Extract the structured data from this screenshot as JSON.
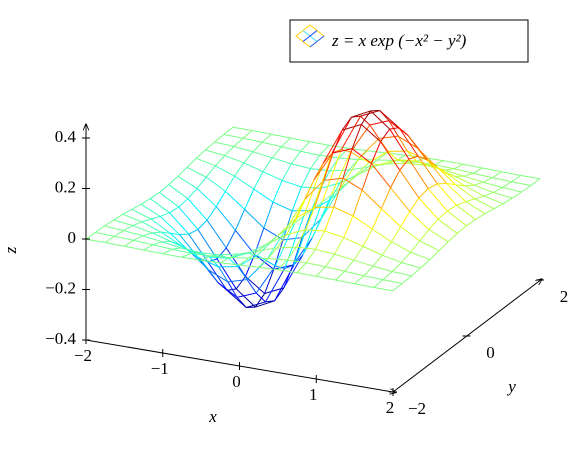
{
  "chart_data": {
    "type": "mesh",
    "legend": "z = x exp (−x² − y²)",
    "xlabel": "x",
    "ylabel": "y",
    "zlabel": "z",
    "x": [
      -2,
      -1.75,
      -1.5,
      -1.25,
      -1,
      -0.75,
      -0.5,
      -0.25,
      0,
      0.25,
      0.5,
      0.75,
      1,
      1.25,
      1.5,
      1.75,
      2
    ],
    "y": [
      -2,
      -1.75,
      -1.5,
      -1.25,
      -1,
      -0.75,
      -0.5,
      -0.25,
      0,
      0.25,
      0.5,
      0.75,
      1,
      1.25,
      1.5,
      1.75,
      2
    ],
    "z": [
      [
        -0.001,
        -0.002,
        -0.004,
        -0.008,
        -0.013,
        -0.021,
        -0.029,
        -0.034,
        -0.037,
        -0.034,
        -0.029,
        -0.021,
        -0.013,
        -0.008,
        -0.004,
        -0.002,
        -0.001
      ],
      [
        -0.001,
        -0.004,
        -0.009,
        -0.017,
        -0.03,
        -0.047,
        -0.064,
        -0.077,
        -0.082,
        -0.077,
        -0.064,
        -0.047,
        -0.03,
        -0.017,
        -0.009,
        -0.004,
        -0.001
      ],
      [
        -0.003,
        -0.007,
        -0.017,
        -0.033,
        -0.058,
        -0.09,
        -0.123,
        -0.149,
        -0.158,
        -0.149,
        -0.123,
        -0.09,
        -0.058,
        -0.033,
        -0.017,
        -0.007,
        -0.003
      ],
      [
        -0.005,
        -0.012,
        -0.028,
        -0.055,
        -0.096,
        -0.149,
        -0.204,
        -0.246,
        -0.262,
        -0.246,
        -0.204,
        -0.149,
        -0.096,
        -0.055,
        -0.028,
        -0.012,
        -0.005
      ],
      [
        -0.007,
        -0.017,
        -0.039,
        -0.077,
        -0.135,
        -0.21,
        -0.287,
        -0.346,
        -0.368,
        -0.346,
        -0.287,
        -0.21,
        -0.135,
        -0.077,
        -0.039,
        -0.017,
        -0.007
      ],
      [
        -0.008,
        -0.02,
        -0.045,
        -0.09,
        -0.157,
        -0.244,
        -0.333,
        -0.401,
        -0.427,
        -0.401,
        -0.333,
        -0.244,
        -0.157,
        -0.09,
        -0.045,
        -0.02,
        -0.008
      ],
      [
        -0.007,
        -0.018,
        -0.041,
        -0.082,
        -0.143,
        -0.222,
        -0.303,
        -0.366,
        -0.389,
        -0.366,
        -0.303,
        -0.222,
        -0.143,
        -0.082,
        -0.041,
        -0.018,
        -0.007
      ],
      [
        -0.004,
        -0.011,
        -0.025,
        -0.049,
        -0.086,
        -0.134,
        -0.183,
        -0.221,
        -0.235,
        -0.221,
        -0.183,
        -0.134,
        -0.086,
        -0.049,
        -0.025,
        -0.011,
        -0.004
      ],
      [
        0,
        0,
        0,
        0,
        0,
        0,
        0,
        0,
        0,
        0,
        0,
        0,
        0,
        0,
        0,
        0,
        0
      ],
      [
        0.004,
        0.011,
        0.025,
        0.049,
        0.086,
        0.134,
        0.183,
        0.221,
        0.235,
        0.221,
        0.183,
        0.134,
        0.086,
        0.049,
        0.025,
        0.011,
        0.004
      ],
      [
        0.007,
        0.018,
        0.041,
        0.082,
        0.143,
        0.222,
        0.303,
        0.366,
        0.389,
        0.366,
        0.303,
        0.222,
        0.143,
        0.082,
        0.041,
        0.018,
        0.007
      ],
      [
        0.008,
        0.02,
        0.045,
        0.09,
        0.157,
        0.244,
        0.333,
        0.401,
        0.427,
        0.401,
        0.333,
        0.244,
        0.157,
        0.09,
        0.045,
        0.02,
        0.008
      ],
      [
        0.007,
        0.017,
        0.039,
        0.077,
        0.135,
        0.21,
        0.287,
        0.346,
        0.368,
        0.346,
        0.287,
        0.21,
        0.135,
        0.077,
        0.039,
        0.017,
        0.007
      ],
      [
        0.005,
        0.012,
        0.028,
        0.055,
        0.096,
        0.149,
        0.204,
        0.246,
        0.262,
        0.246,
        0.204,
        0.149,
        0.096,
        0.055,
        0.028,
        0.012,
        0.005
      ],
      [
        0.003,
        0.007,
        0.017,
        0.033,
        0.058,
        0.09,
        0.123,
        0.149,
        0.158,
        0.149,
        0.123,
        0.09,
        0.058,
        0.033,
        0.017,
        0.007,
        0.003
      ],
      [
        0.001,
        0.004,
        0.009,
        0.017,
        0.03,
        0.047,
        0.064,
        0.077,
        0.082,
        0.077,
        0.064,
        0.047,
        0.03,
        0.017,
        0.009,
        0.004,
        0.001
      ],
      [
        0.001,
        0.002,
        0.004,
        0.008,
        0.013,
        0.021,
        0.029,
        0.034,
        0.037,
        0.034,
        0.029,
        0.021,
        0.013,
        0.008,
        0.004,
        0.002,
        0.001
      ]
    ],
    "xlim": [
      -2,
      2
    ],
    "ylim": [
      -2,
      2
    ],
    "zlim": [
      -0.4,
      0.4
    ],
    "xticks": [
      {
        "value": -2,
        "label": "−2"
      },
      {
        "value": -1,
        "label": "−1"
      },
      0,
      1,
      2
    ],
    "yticks": [
      {
        "value": -2,
        "label": "−2"
      },
      0,
      2
    ],
    "zticks": [
      {
        "value": -0.4,
        "label": "−0.4"
      },
      {
        "value": -0.2,
        "label": "−0.2"
      },
      0,
      0.2,
      0.4
    ],
    "colormap": "jet"
  }
}
